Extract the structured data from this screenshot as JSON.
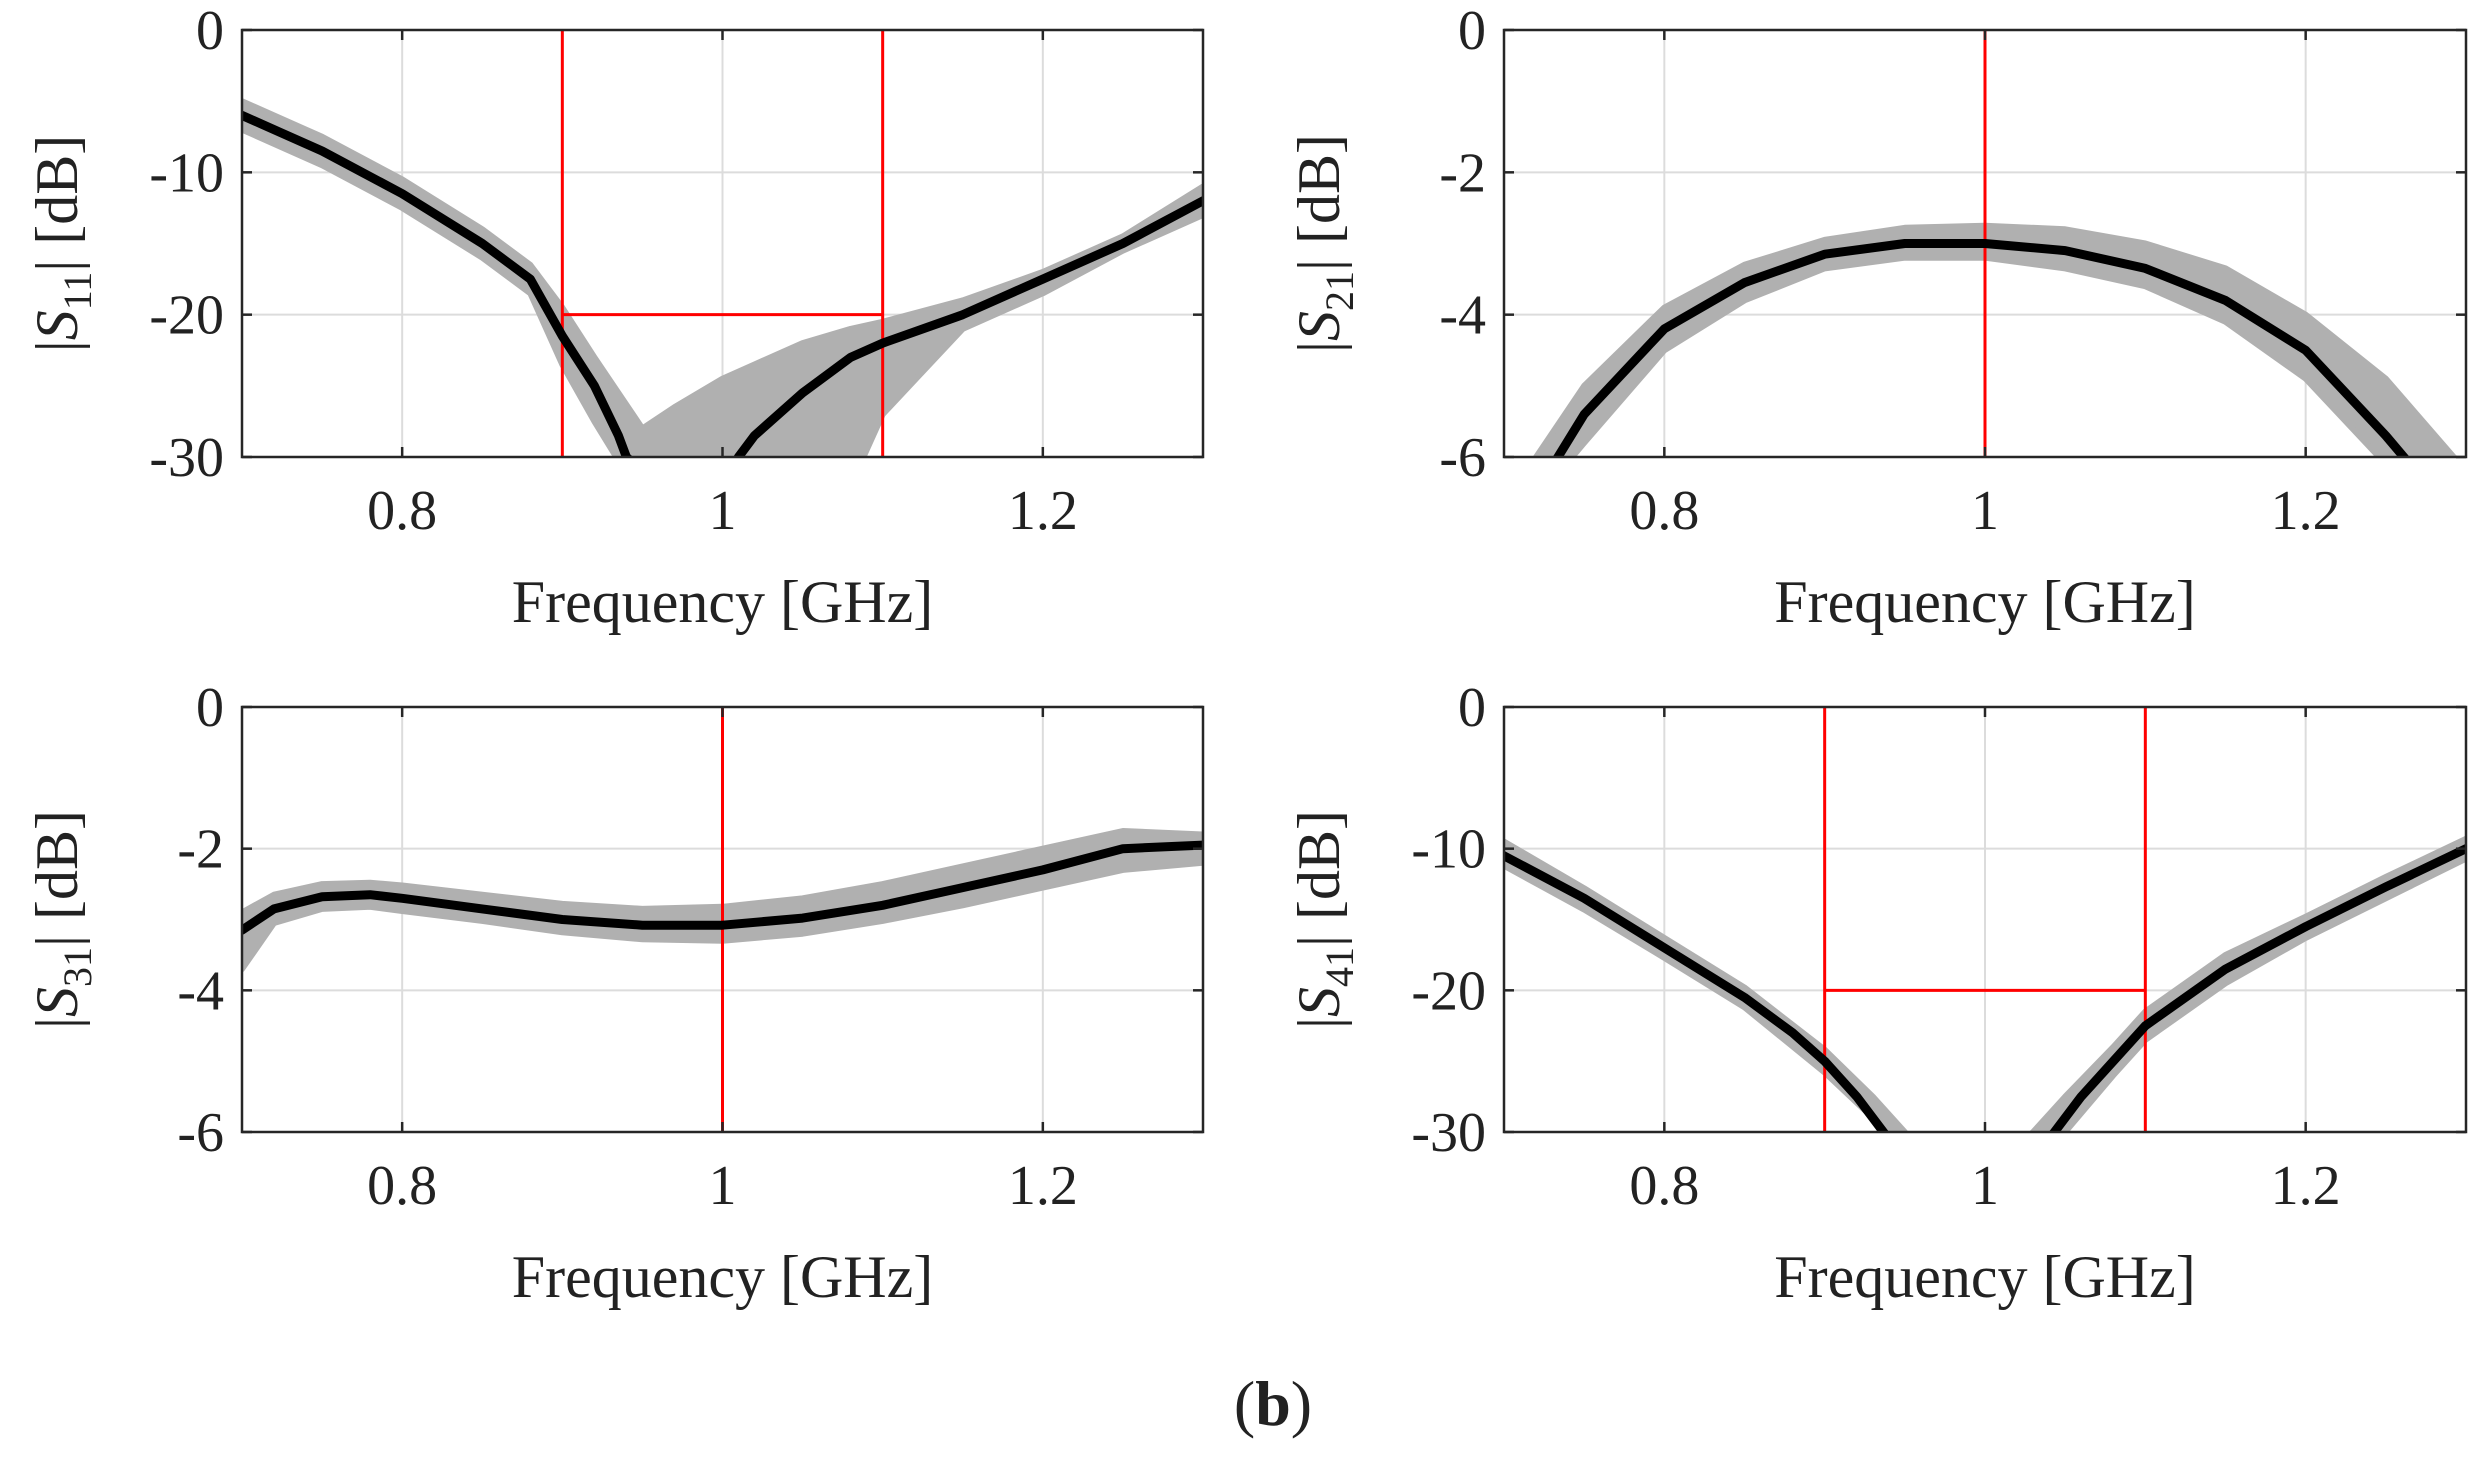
{
  "figure": {
    "caption_open": "(",
    "caption_letter": "b",
    "caption_close": ")"
  },
  "colors": {
    "nominal": "#000000",
    "variation_band": "#b0b0b0",
    "spec": "#ff0000",
    "grid": "#dcdcdc",
    "axes": "#262626"
  },
  "chart_data": [
    {
      "type": "line",
      "xlabel": "Frequency [GHz]",
      "ylabel": {
        "prefix": "|",
        "symbol": "S",
        "subscript": "11",
        "suffix": "| [dB]"
      },
      "xlim": [
        0.7,
        1.3
      ],
      "ylim": [
        -30,
        0
      ],
      "xticks": [
        0.8,
        1,
        1.2
      ],
      "xtick_labels": [
        "0.8",
        "1",
        "1.2"
      ],
      "yticks": [
        0,
        -10,
        -20,
        -30
      ],
      "ytick_labels": [
        "0",
        "-10",
        "-20",
        "-30"
      ],
      "grid": true,
      "nominal": {
        "x": [
          0.7,
          0.75,
          0.8,
          0.85,
          0.88,
          0.9,
          0.92,
          0.935,
          0.94,
          0.95,
          1.0,
          1.01,
          1.02,
          1.05,
          1.08,
          1.1,
          1.15,
          1.2,
          1.25,
          1.3
        ],
        "y": [
          -6,
          -8.5,
          -11.5,
          -15,
          -17.5,
          -21.5,
          -25,
          -28.5,
          -30,
          -31,
          -32,
          -30,
          -28.5,
          -25.5,
          -23,
          -22,
          -20,
          -17.5,
          -15,
          -12
        ]
      },
      "band": {
        "x": [
          0.7,
          0.75,
          0.8,
          0.85,
          0.88,
          0.9,
          0.92,
          0.95,
          0.97,
          1.0,
          1.02,
          1.05,
          1.08,
          1.1,
          1.15,
          1.2,
          1.25,
          1.3
        ],
        "upper": [
          -5,
          -7.5,
          -10.5,
          -14,
          -16.5,
          -19.5,
          -23,
          -28,
          -26.5,
          -24.5,
          -23.5,
          -22,
          -21,
          -20.5,
          -19,
          -17,
          -14.5,
          -11
        ],
        "lower": [
          -7,
          -9.5,
          -12.5,
          -16,
          -18.5,
          -23.5,
          -27.5,
          -33,
          -33,
          -33,
          -33,
          -33,
          -32,
          -27,
          -21,
          -18.5,
          -15.5,
          -13
        ]
      },
      "spec_lines": [
        {
          "x": [
            0.9,
            0.9
          ],
          "y": [
            0,
            -30
          ]
        },
        {
          "x": [
            1.1,
            1.1
          ],
          "y": [
            0,
            -30
          ]
        },
        {
          "x": [
            0.9,
            1.1
          ],
          "y": [
            -20,
            -20
          ]
        }
      ]
    },
    {
      "type": "line",
      "xlabel": "Frequency [GHz]",
      "ylabel": {
        "prefix": "|",
        "symbol": "S",
        "subscript": "21",
        "suffix": "| [dB]"
      },
      "xlim": [
        0.7,
        1.3
      ],
      "ylim": [
        -6,
        0
      ],
      "xticks": [
        0.8,
        1,
        1.2
      ],
      "xtick_labels": [
        "0.8",
        "1",
        "1.2"
      ],
      "yticks": [
        0,
        -2,
        -4,
        -6
      ],
      "ytick_labels": [
        "0",
        "-2",
        "-4",
        "-6"
      ],
      "grid": true,
      "nominal": {
        "x": [
          0.72,
          0.75,
          0.8,
          0.85,
          0.9,
          0.95,
          0.97,
          1.0,
          1.05,
          1.1,
          1.15,
          1.2,
          1.25,
          1.28
        ],
        "y": [
          -6.5,
          -5.4,
          -4.2,
          -3.55,
          -3.15,
          -3.0,
          -3.0,
          -3.0,
          -3.1,
          -3.35,
          -3.8,
          -4.5,
          -5.7,
          -6.5
        ]
      },
      "band": {
        "x": [
          0.72,
          0.75,
          0.8,
          0.85,
          0.9,
          0.95,
          1.0,
          1.05,
          1.1,
          1.15,
          1.2,
          1.25,
          1.3
        ],
        "upper": [
          -6.0,
          -5.0,
          -3.9,
          -3.3,
          -2.95,
          -2.78,
          -2.75,
          -2.8,
          -3.0,
          -3.35,
          -4.0,
          -4.9,
          -6.2
        ],
        "lower": [
          -6.6,
          -5.8,
          -4.5,
          -3.8,
          -3.35,
          -3.2,
          -3.2,
          -3.35,
          -3.6,
          -4.1,
          -4.9,
          -6.1,
          -6.6
        ]
      },
      "spec_lines": [
        {
          "x": [
            1.0,
            1.0
          ],
          "y": [
            0,
            -6
          ]
        }
      ]
    },
    {
      "type": "line",
      "xlabel": "Frequency [GHz]",
      "ylabel": {
        "prefix": "|",
        "symbol": "S",
        "subscript": "31",
        "suffix": "| [dB]"
      },
      "xlim": [
        0.7,
        1.3
      ],
      "ylim": [
        -6,
        0
      ],
      "xticks": [
        0.8,
        1,
        1.2
      ],
      "xtick_labels": [
        "0.8",
        "1",
        "1.2"
      ],
      "yticks": [
        0,
        -2,
        -4,
        -6
      ],
      "ytick_labels": [
        "0",
        "-2",
        "-4",
        "-6"
      ],
      "grid": true,
      "nominal": {
        "x": [
          0.7,
          0.72,
          0.75,
          0.78,
          0.8,
          0.85,
          0.9,
          0.95,
          1.0,
          1.05,
          1.1,
          1.15,
          1.2,
          1.25,
          1.3
        ],
        "y": [
          -3.15,
          -2.85,
          -2.68,
          -2.65,
          -2.7,
          -2.85,
          -3.0,
          -3.08,
          -3.08,
          -2.98,
          -2.8,
          -2.55,
          -2.3,
          -2.0,
          -1.95
        ]
      },
      "band": {
        "x": [
          0.7,
          0.72,
          0.75,
          0.78,
          0.8,
          0.85,
          0.9,
          0.95,
          1.0,
          1.05,
          1.1,
          1.15,
          1.2,
          1.25,
          1.3
        ],
        "upper": [
          -2.9,
          -2.65,
          -2.5,
          -2.48,
          -2.52,
          -2.65,
          -2.78,
          -2.85,
          -2.82,
          -2.7,
          -2.5,
          -2.25,
          -2.0,
          -1.75,
          -1.8
        ],
        "lower": [
          -3.7,
          -3.05,
          -2.85,
          -2.82,
          -2.88,
          -3.02,
          -3.18,
          -3.28,
          -3.3,
          -3.2,
          -3.02,
          -2.8,
          -2.55,
          -2.3,
          -2.2
        ]
      },
      "spec_lines": [
        {
          "x": [
            1.0,
            1.0
          ],
          "y": [
            0,
            -6
          ]
        }
      ]
    },
    {
      "type": "line",
      "xlabel": "Frequency [GHz]",
      "ylabel": {
        "prefix": "|",
        "symbol": "S",
        "subscript": "41",
        "suffix": "| [dB]"
      },
      "xlim": [
        0.7,
        1.3
      ],
      "ylim": [
        -30,
        0
      ],
      "xticks": [
        0.8,
        1,
        1.2
      ],
      "xtick_labels": [
        "0.8",
        "1",
        "1.2"
      ],
      "yticks": [
        0,
        -10,
        -20,
        -30
      ],
      "ytick_labels": [
        "0",
        "-10",
        "-20",
        "-30"
      ],
      "grid": true,
      "nominal": {
        "x": [
          0.7,
          0.75,
          0.8,
          0.85,
          0.88,
          0.9,
          0.92,
          0.94,
          0.96,
          1.0,
          1.04,
          1.06,
          1.08,
          1.1,
          1.15,
          1.2,
          1.25,
          1.3
        ],
        "y": [
          -10.5,
          -13.5,
          -17,
          -20.5,
          -23,
          -25,
          -27.5,
          -30.5,
          -33,
          -34,
          -30.5,
          -27.5,
          -25,
          -22.5,
          -18.5,
          -15.5,
          -12.7,
          -10
        ]
      },
      "band": {
        "x": [
          0.7,
          0.75,
          0.8,
          0.85,
          0.9,
          0.93,
          0.95,
          0.97,
          1.0,
          1.03,
          1.05,
          1.08,
          1.1,
          1.15,
          1.2,
          1.25,
          1.3
        ],
        "upper": [
          -9.5,
          -12.8,
          -16.3,
          -19.8,
          -24.2,
          -27.5,
          -30,
          -33,
          -33,
          -30,
          -27.5,
          -24,
          -21.5,
          -17.5,
          -14.8,
          -12,
          -9.3
        ],
        "lower": [
          -11.2,
          -14.3,
          -17.7,
          -21.2,
          -25.8,
          -29,
          -32,
          -33,
          -33,
          -33,
          -30,
          -26,
          -23.5,
          -19.5,
          -16.3,
          -13.5,
          -10.7
        ]
      },
      "spec_lines": [
        {
          "x": [
            0.9,
            0.9
          ],
          "y": [
            0,
            -30
          ]
        },
        {
          "x": [
            1.1,
            1.1
          ],
          "y": [
            0,
            -30
          ]
        },
        {
          "x": [
            0.9,
            1.1
          ],
          "y": [
            -20,
            -20
          ]
        }
      ]
    }
  ]
}
